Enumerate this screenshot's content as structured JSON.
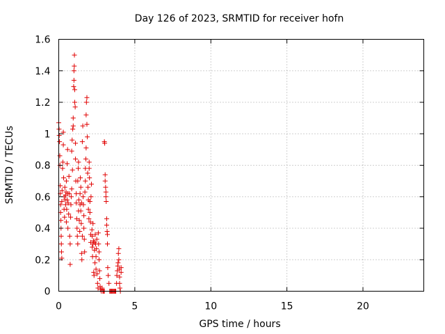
{
  "chart_data": {
    "type": "scatter",
    "title": "Day 126 of 2023, SRMTID for receiver hofn",
    "xlabel": "GPS time / hours",
    "ylabel": "SRMTID / TECUs",
    "xlim": [
      0,
      24
    ],
    "ylim": [
      0,
      1.6
    ],
    "x_ticks": [
      0,
      5,
      10,
      15,
      20
    ],
    "x_tick_labels": [
      "0",
      "5",
      "10",
      "15",
      "20"
    ],
    "y_ticks": [
      0,
      0.2,
      0.4,
      0.6,
      0.8,
      1.0,
      1.2,
      1.4,
      1.6
    ],
    "y_tick_labels": [
      "0",
      "0.2",
      "0.4",
      "0.6",
      "0.8",
      "1",
      "1.2",
      "1.4",
      "1.6"
    ],
    "grid": true,
    "marker": "+",
    "color": "#e00000",
    "series": [
      {
        "name": "SRMTID",
        "points": [
          [
            0.0,
            1.07
          ],
          [
            0.02,
            1.03
          ],
          [
            0.03,
            0.99
          ],
          [
            0.05,
            0.95
          ],
          [
            0.07,
            0.86
          ],
          [
            0.08,
            0.8
          ],
          [
            0.1,
            0.67
          ],
          [
            0.1,
            0.62
          ],
          [
            0.12,
            0.55
          ],
          [
            0.12,
            0.5
          ],
          [
            0.14,
            0.45
          ],
          [
            0.15,
            0.4
          ],
          [
            0.16,
            0.35
          ],
          [
            0.17,
            0.3
          ],
          [
            0.18,
            0.25
          ],
          [
            0.2,
            0.21
          ],
          [
            0.2,
            0.57
          ],
          [
            0.22,
            0.64
          ],
          [
            0.25,
            0.78
          ],
          [
            0.27,
            0.82
          ],
          [
            0.3,
            0.93
          ],
          [
            0.3,
            1.01
          ],
          [
            0.32,
            0.72
          ],
          [
            0.35,
            0.6
          ],
          [
            0.35,
            0.52
          ],
          [
            0.38,
            0.47
          ],
          [
            0.4,
            0.66
          ],
          [
            0.42,
            0.58
          ],
          [
            0.45,
            0.61
          ],
          [
            0.45,
            0.55
          ],
          [
            0.48,
            0.63
          ],
          [
            0.5,
            0.44
          ],
          [
            0.5,
            0.7
          ],
          [
            0.52,
            0.52
          ],
          [
            0.55,
            0.58
          ],
          [
            0.55,
            0.81
          ],
          [
            0.58,
            0.9
          ],
          [
            0.6,
            0.62
          ],
          [
            0.6,
            0.4
          ],
          [
            0.62,
            0.56
          ],
          [
            0.65,
            0.49
          ],
          [
            0.67,
            0.73
          ],
          [
            0.7,
            0.62
          ],
          [
            0.72,
            0.35
          ],
          [
            0.75,
            0.17
          ],
          [
            0.75,
            0.3
          ],
          [
            0.78,
            0.47
          ],
          [
            0.8,
            0.55
          ],
          [
            0.82,
            0.6
          ],
          [
            0.85,
            0.65
          ],
          [
            0.85,
            0.89
          ],
          [
            0.88,
            0.96
          ],
          [
            0.9,
            0.77
          ],
          [
            0.92,
            1.03
          ],
          [
            0.95,
            1.05
          ],
          [
            0.95,
            1.1
          ],
          [
            0.98,
            1.3
          ],
          [
            1.0,
            1.34
          ],
          [
            1.0,
            1.4
          ],
          [
            1.02,
            1.43
          ],
          [
            1.03,
            1.5
          ],
          [
            1.05,
            1.28
          ],
          [
            1.05,
            1.2
          ],
          [
            1.08,
            1.17
          ],
          [
            1.1,
            0.94
          ],
          [
            1.1,
            0.84
          ],
          [
            1.12,
            0.7
          ],
          [
            1.15,
            0.62
          ],
          [
            1.15,
            0.56
          ],
          [
            1.18,
            0.46
          ],
          [
            1.2,
            0.4
          ],
          [
            1.22,
            0.35
          ],
          [
            1.25,
            0.3
          ],
          [
            1.25,
            0.7
          ],
          [
            1.28,
            0.78
          ],
          [
            1.3,
            0.82
          ],
          [
            1.3,
            0.51
          ],
          [
            1.32,
            0.58
          ],
          [
            1.35,
            0.45
          ],
          [
            1.38,
            0.38
          ],
          [
            1.4,
            0.55
          ],
          [
            1.4,
            0.62
          ],
          [
            1.42,
            0.72
          ],
          [
            1.45,
            0.66
          ],
          [
            1.45,
            0.51
          ],
          [
            1.48,
            0.43
          ],
          [
            1.5,
            0.56
          ],
          [
            1.5,
            0.24
          ],
          [
            1.52,
            0.2
          ],
          [
            1.55,
            0.35
          ],
          [
            1.55,
            0.95
          ],
          [
            1.58,
            1.05
          ],
          [
            1.6,
            0.6
          ],
          [
            1.62,
            0.55
          ],
          [
            1.65,
            0.48
          ],
          [
            1.65,
            0.4
          ],
          [
            1.68,
            0.33
          ],
          [
            1.7,
            0.25
          ],
          [
            1.72,
            0.63
          ],
          [
            1.75,
            0.7
          ],
          [
            1.75,
            0.78
          ],
          [
            1.78,
            0.84
          ],
          [
            1.8,
            0.91
          ],
          [
            1.8,
            1.12
          ],
          [
            1.82,
            1.2
          ],
          [
            1.85,
            1.23
          ],
          [
            1.85,
            1.06
          ],
          [
            1.88,
            0.98
          ],
          [
            1.9,
            0.75
          ],
          [
            1.92,
            0.66
          ],
          [
            1.95,
            0.58
          ],
          [
            1.95,
            0.52
          ],
          [
            1.98,
            0.46
          ],
          [
            2.0,
            0.82
          ],
          [
            2.0,
            0.78
          ],
          [
            2.02,
            0.72
          ],
          [
            2.05,
            0.57
          ],
          [
            2.05,
            0.5
          ],
          [
            2.08,
            0.44
          ],
          [
            2.1,
            0.36
          ],
          [
            2.1,
            0.31
          ],
          [
            2.12,
            0.6
          ],
          [
            2.15,
            0.68
          ],
          [
            2.18,
            0.39
          ],
          [
            2.2,
            0.35
          ],
          [
            2.2,
            0.28
          ],
          [
            2.22,
            0.22
          ],
          [
            2.25,
            0.3
          ],
          [
            2.25,
            0.43
          ],
          [
            2.28,
            0.32
          ],
          [
            2.3,
            0.12
          ],
          [
            2.32,
            0.1
          ],
          [
            2.35,
            0.26
          ],
          [
            2.35,
            0.31
          ],
          [
            2.38,
            0.18
          ],
          [
            2.4,
            0.36
          ],
          [
            2.42,
            0.3
          ],
          [
            2.45,
            0.14
          ],
          [
            2.45,
            0.22
          ],
          [
            2.48,
            0.27
          ],
          [
            2.5,
            0.33
          ],
          [
            2.52,
            0.11
          ],
          [
            2.55,
            0.05
          ],
          [
            2.58,
            0.02
          ],
          [
            2.6,
            0.37
          ],
          [
            2.62,
            0.3
          ],
          [
            2.65,
            0.25
          ],
          [
            2.65,
            0.2
          ],
          [
            2.68,
            0.13
          ],
          [
            2.7,
            0.08
          ],
          [
            2.72,
            0.03
          ],
          [
            2.75,
            0.01
          ],
          [
            2.8,
            0.0
          ],
          [
            2.85,
            0.02
          ],
          [
            2.9,
            0.0
          ],
          [
            2.95,
            0.0
          ],
          [
            3.0,
            0.0
          ],
          [
            3.0,
            0.95
          ],
          [
            3.02,
            0.94
          ],
          [
            3.05,
            0.74
          ],
          [
            3.05,
            0.7
          ],
          [
            3.08,
            0.66
          ],
          [
            3.1,
            0.63
          ],
          [
            3.1,
            0.6
          ],
          [
            3.12,
            0.57
          ],
          [
            3.15,
            0.46
          ],
          [
            3.15,
            0.42
          ],
          [
            3.18,
            0.38
          ],
          [
            3.2,
            0.36
          ],
          [
            3.2,
            0.3
          ],
          [
            3.22,
            0.15
          ],
          [
            3.25,
            0.1
          ],
          [
            3.3,
            0.05
          ],
          [
            3.35,
            0.0
          ],
          [
            3.4,
            0.0
          ],
          [
            3.45,
            0.0
          ],
          [
            3.5,
            0.0
          ],
          [
            3.55,
            0.0
          ],
          [
            3.6,
            0.0
          ],
          [
            3.65,
            0.0
          ],
          [
            3.7,
            0.0
          ],
          [
            3.75,
            0.0
          ],
          [
            3.8,
            0.05
          ],
          [
            3.82,
            0.1
          ],
          [
            3.85,
            0.13
          ],
          [
            3.88,
            0.16
          ],
          [
            3.9,
            0.18
          ],
          [
            3.92,
            0.24
          ],
          [
            3.95,
            0.27
          ],
          [
            3.95,
            0.2
          ],
          [
            3.98,
            0.14
          ],
          [
            4.0,
            0.09
          ],
          [
            4.0,
            0.05
          ],
          [
            4.02,
            0.02
          ],
          [
            4.05,
            0.0
          ],
          [
            4.1,
            0.15
          ],
          [
            4.1,
            0.12
          ]
        ]
      }
    ]
  }
}
